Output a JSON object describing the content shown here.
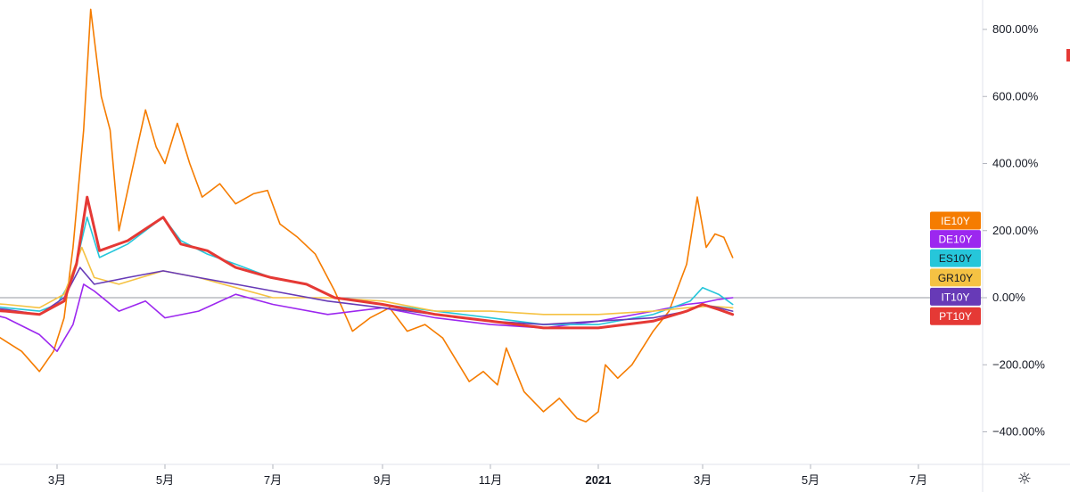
{
  "chart_data": {
    "type": "line",
    "xlim": [
      "2020-01-01",
      "2021-07-31"
    ],
    "ylim": [
      -500,
      880
    ],
    "y_ticks": [
      "800.00%",
      "600.00%",
      "400.00%",
      "200.00%",
      "0.00%",
      "−200.00%",
      "−400.00%"
    ],
    "y_tick_values": [
      800,
      600,
      400,
      200,
      0,
      -200,
      -400
    ],
    "x_ticks": [
      {
        "label": "3月",
        "date": "2020-03-01",
        "bold": false
      },
      {
        "label": "5月",
        "date": "2020-05-01",
        "bold": false
      },
      {
        "label": "7月",
        "date": "2020-07-01",
        "bold": false
      },
      {
        "label": "9月",
        "date": "2020-09-01",
        "bold": false
      },
      {
        "label": "11月",
        "date": "2020-11-01",
        "bold": false
      },
      {
        "label": "2021",
        "date": "2021-01-01",
        "bold": true
      },
      {
        "label": "3月",
        "date": "2021-03-01",
        "bold": false
      },
      {
        "label": "5月",
        "date": "2021-05-01",
        "bold": false
      },
      {
        "label": "7月",
        "date": "2021-07-01",
        "bold": false
      }
    ],
    "grid": false,
    "zero_line": true,
    "legend_placement": "right-axis-tags",
    "series": [
      {
        "name": "IE10Y",
        "color": "#f57c00",
        "width": 1.6,
        "points": [
          [
            "2020-01-01",
            -20
          ],
          [
            "2020-01-10",
            -60
          ],
          [
            "2020-01-20",
            -90
          ],
          [
            "2020-02-01",
            -130
          ],
          [
            "2020-02-10",
            -160
          ],
          [
            "2020-02-20",
            -220
          ],
          [
            "2020-02-28",
            -160
          ],
          [
            "2020-03-05",
            -60
          ],
          [
            "2020-03-10",
            150
          ],
          [
            "2020-03-16",
            500
          ],
          [
            "2020-03-20",
            860
          ],
          [
            "2020-03-26",
            600
          ],
          [
            "2020-03-31",
            500
          ],
          [
            "2020-04-05",
            200
          ],
          [
            "2020-04-12",
            370
          ],
          [
            "2020-04-20",
            560
          ],
          [
            "2020-04-26",
            450
          ],
          [
            "2020-05-01",
            400
          ],
          [
            "2020-05-08",
            520
          ],
          [
            "2020-05-15",
            400
          ],
          [
            "2020-05-22",
            300
          ],
          [
            "2020-06-01",
            340
          ],
          [
            "2020-06-10",
            280
          ],
          [
            "2020-06-20",
            310
          ],
          [
            "2020-06-28",
            320
          ],
          [
            "2020-07-05",
            220
          ],
          [
            "2020-07-15",
            180
          ],
          [
            "2020-07-25",
            130
          ],
          [
            "2020-08-05",
            20
          ],
          [
            "2020-08-15",
            -100
          ],
          [
            "2020-08-25",
            -60
          ],
          [
            "2020-09-05",
            -30
          ],
          [
            "2020-09-15",
            -100
          ],
          [
            "2020-09-25",
            -80
          ],
          [
            "2020-10-05",
            -120
          ],
          [
            "2020-10-20",
            -250
          ],
          [
            "2020-10-28",
            -220
          ],
          [
            "2020-11-05",
            -260
          ],
          [
            "2020-11-10",
            -150
          ],
          [
            "2020-11-20",
            -280
          ],
          [
            "2020-12-01",
            -340
          ],
          [
            "2020-12-10",
            -300
          ],
          [
            "2020-12-20",
            -360
          ],
          [
            "2020-12-25",
            -370
          ],
          [
            "2021-01-01",
            -340
          ],
          [
            "2021-01-05",
            -200
          ],
          [
            "2021-01-12",
            -240
          ],
          [
            "2021-01-20",
            -200
          ],
          [
            "2021-02-01",
            -100
          ],
          [
            "2021-02-10",
            -40
          ],
          [
            "2021-02-20",
            100
          ],
          [
            "2021-02-26",
            300
          ],
          [
            "2021-03-03",
            150
          ],
          [
            "2021-03-08",
            190
          ],
          [
            "2021-03-13",
            180
          ],
          [
            "2021-03-18",
            120
          ]
        ]
      },
      {
        "name": "DE10Y",
        "color": "#9c27ef",
        "width": 1.6,
        "points": [
          [
            "2020-01-01",
            -20
          ],
          [
            "2020-02-01",
            -60
          ],
          [
            "2020-02-20",
            -110
          ],
          [
            "2020-03-01",
            -160
          ],
          [
            "2020-03-10",
            -80
          ],
          [
            "2020-03-16",
            40
          ],
          [
            "2020-03-22",
            20
          ],
          [
            "2020-04-05",
            -40
          ],
          [
            "2020-04-20",
            -10
          ],
          [
            "2020-05-01",
            -60
          ],
          [
            "2020-05-20",
            -40
          ],
          [
            "2020-06-10",
            10
          ],
          [
            "2020-07-01",
            -20
          ],
          [
            "2020-08-01",
            -50
          ],
          [
            "2020-09-01",
            -30
          ],
          [
            "2020-10-01",
            -60
          ],
          [
            "2020-11-01",
            -80
          ],
          [
            "2020-12-01",
            -90
          ],
          [
            "2021-01-01",
            -70
          ],
          [
            "2021-02-01",
            -40
          ],
          [
            "2021-02-20",
            -20
          ],
          [
            "2021-03-01",
            -15
          ],
          [
            "2021-03-10",
            -5
          ],
          [
            "2021-03-18",
            0
          ]
        ]
      },
      {
        "name": "ES10Y",
        "color": "#26c6da",
        "width": 1.6,
        "points": [
          [
            "2020-01-01",
            -10
          ],
          [
            "2020-02-01",
            -30
          ],
          [
            "2020-02-20",
            -40
          ],
          [
            "2020-03-01",
            -20
          ],
          [
            "2020-03-10",
            60
          ],
          [
            "2020-03-18",
            240
          ],
          [
            "2020-03-25",
            120
          ],
          [
            "2020-04-10",
            160
          ],
          [
            "2020-04-30",
            240
          ],
          [
            "2020-05-10",
            170
          ],
          [
            "2020-05-25",
            130
          ],
          [
            "2020-06-10",
            100
          ],
          [
            "2020-06-30",
            60
          ],
          [
            "2020-07-20",
            40
          ],
          [
            "2020-08-05",
            0
          ],
          [
            "2020-09-01",
            -20
          ],
          [
            "2020-10-01",
            -40
          ],
          [
            "2020-11-01",
            -60
          ],
          [
            "2020-12-01",
            -80
          ],
          [
            "2021-01-01",
            -80
          ],
          [
            "2021-02-01",
            -50
          ],
          [
            "2021-02-22",
            -10
          ],
          [
            "2021-03-01",
            30
          ],
          [
            "2021-03-10",
            10
          ],
          [
            "2021-03-18",
            -20
          ]
        ]
      },
      {
        "name": "GR10Y",
        "color": "#f5c243",
        "width": 1.6,
        "points": [
          [
            "2020-01-01",
            -10
          ],
          [
            "2020-02-01",
            -20
          ],
          [
            "2020-02-20",
            -30
          ],
          [
            "2020-03-05",
            10
          ],
          [
            "2020-03-15",
            150
          ],
          [
            "2020-03-22",
            60
          ],
          [
            "2020-04-05",
            40
          ],
          [
            "2020-04-30",
            80
          ],
          [
            "2020-05-20",
            60
          ],
          [
            "2020-06-10",
            30
          ],
          [
            "2020-07-01",
            0
          ],
          [
            "2020-08-01",
            0
          ],
          [
            "2020-09-01",
            -10
          ],
          [
            "2020-10-01",
            -40
          ],
          [
            "2020-11-01",
            -40
          ],
          [
            "2020-12-01",
            -50
          ],
          [
            "2021-01-01",
            -50
          ],
          [
            "2021-02-01",
            -40
          ],
          [
            "2021-02-20",
            -30
          ],
          [
            "2021-03-05",
            -25
          ],
          [
            "2021-03-18",
            -30
          ]
        ]
      },
      {
        "name": "IT10Y",
        "color": "#673ab7",
        "width": 1.6,
        "points": [
          [
            "2020-01-01",
            -20
          ],
          [
            "2020-02-01",
            -35
          ],
          [
            "2020-02-20",
            -50
          ],
          [
            "2020-03-05",
            0
          ],
          [
            "2020-03-14",
            90
          ],
          [
            "2020-03-22",
            40
          ],
          [
            "2020-04-10",
            60
          ],
          [
            "2020-04-30",
            80
          ],
          [
            "2020-05-20",
            60
          ],
          [
            "2020-06-10",
            40
          ],
          [
            "2020-07-01",
            20
          ],
          [
            "2020-08-01",
            -10
          ],
          [
            "2020-09-01",
            -30
          ],
          [
            "2020-10-01",
            -50
          ],
          [
            "2020-11-01",
            -70
          ],
          [
            "2020-12-01",
            -80
          ],
          [
            "2021-01-01",
            -70
          ],
          [
            "2021-02-01",
            -60
          ],
          [
            "2021-02-20",
            -40
          ],
          [
            "2021-03-01",
            -20
          ],
          [
            "2021-03-10",
            -30
          ],
          [
            "2021-03-18",
            -40
          ]
        ]
      },
      {
        "name": "PT10Y",
        "color": "#e53935",
        "width": 3,
        "points": [
          [
            "2020-01-01",
            -30
          ],
          [
            "2020-02-01",
            -40
          ],
          [
            "2020-02-20",
            -50
          ],
          [
            "2020-03-05",
            -10
          ],
          [
            "2020-03-12",
            100
          ],
          [
            "2020-03-18",
            300
          ],
          [
            "2020-03-25",
            140
          ],
          [
            "2020-04-10",
            170
          ],
          [
            "2020-04-30",
            240
          ],
          [
            "2020-05-10",
            160
          ],
          [
            "2020-05-25",
            140
          ],
          [
            "2020-06-10",
            90
          ],
          [
            "2020-06-30",
            60
          ],
          [
            "2020-07-20",
            40
          ],
          [
            "2020-08-05",
            0
          ],
          [
            "2020-09-01",
            -20
          ],
          [
            "2020-10-01",
            -50
          ],
          [
            "2020-11-01",
            -70
          ],
          [
            "2020-12-01",
            -90
          ],
          [
            "2021-01-01",
            -90
          ],
          [
            "2021-02-01",
            -70
          ],
          [
            "2021-02-20",
            -40
          ],
          [
            "2021-03-01",
            -20
          ],
          [
            "2021-03-10",
            -35
          ],
          [
            "2021-03-18",
            -50
          ]
        ]
      }
    ],
    "tags": [
      {
        "label": "IE10Y",
        "color": "#f57c00",
        "text_color": "#ffffff",
        "value": 230
      },
      {
        "label": "DE10Y",
        "color": "#9c27ef",
        "text_color": "#ffffff",
        "value": 175
      },
      {
        "label": "ES10Y",
        "color": "#26c6da",
        "text_color": "#131722",
        "value": 118
      },
      {
        "label": "GR10Y",
        "color": "#f5c243",
        "text_color": "#131722",
        "value": 60
      },
      {
        "label": "IT10Y",
        "color": "#673ab7",
        "text_color": "#ffffff",
        "value": 3
      },
      {
        "label": "PT10Y",
        "color": "#e53935",
        "text_color": "#ffffff",
        "value": -55
      }
    ]
  },
  "ui": {
    "settings_icon": "gear-icon",
    "settings_glyph": "☼",
    "axis_color": "#b2b5be",
    "zero_line_color": "#9598a1",
    "right_edge_marker_color": "#e53935"
  }
}
